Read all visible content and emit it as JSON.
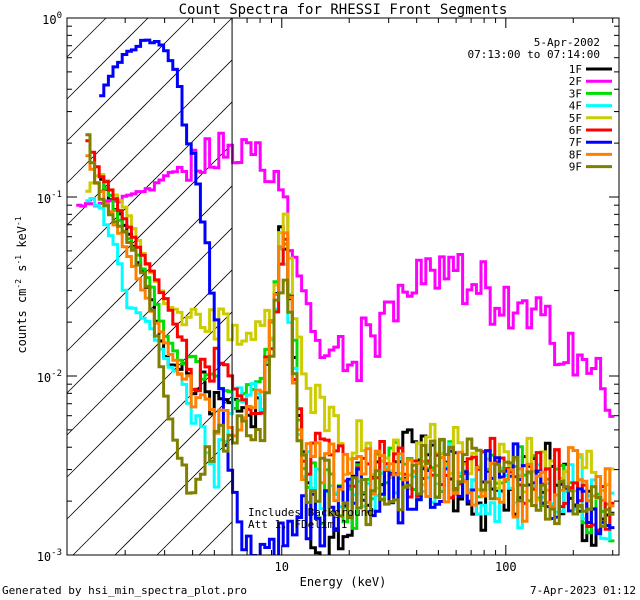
{
  "chart_data": {
    "type": "line",
    "title": "Count Spectra for RHESSI Front Segments",
    "xlabel": "Energy (keV)",
    "ylabel_parts": {
      "a": "counts cm",
      "b": "-2",
      "c": " s",
      "d": "-1",
      "e": " keV",
      "f": "-1"
    },
    "xscale": "log",
    "yscale": "log",
    "xlim": [
      1.1,
      320
    ],
    "ylim": [
      0.001,
      1.0
    ],
    "x_ticks": [
      {
        "v": 10,
        "label": "10"
      },
      {
        "v": 100,
        "label": "100"
      }
    ],
    "y_ticks": [
      {
        "v": 1.0,
        "base": "10",
        "exp": "0"
      },
      {
        "v": 0.1,
        "base": "10",
        "exp": "-1"
      },
      {
        "v": 0.01,
        "base": "10",
        "exp": "-2"
      },
      {
        "v": 0.001,
        "base": "10",
        "exp": "-3"
      }
    ],
    "hatch_region": [
      1.1,
      6.0
    ],
    "annotation": {
      "line1": "Includes Background",
      "line2": "Att 1, FDelim 1"
    },
    "legend": {
      "date": "5-Apr-2002",
      "time": "07:13:00 to 07:14:00",
      "position": "top-right"
    },
    "series": [
      {
        "name": "1F",
        "color": "#000000",
        "points": [
          [
            1.5,
            0.13
          ],
          [
            2.0,
            0.065
          ],
          [
            2.5,
            0.03
          ],
          [
            3.0,
            0.012
          ],
          [
            3.5,
            0.011
          ],
          [
            4.5,
            0.008
          ],
          [
            6,
            0.006
          ],
          [
            8,
            0.006
          ],
          [
            10,
            0.08
          ],
          [
            12,
            0.004
          ],
          [
            14,
            0.0008
          ],
          [
            20,
            0.002
          ],
          [
            30,
            0.004
          ],
          [
            50,
            0.003
          ],
          [
            70,
            0.002
          ],
          [
            100,
            0.002
          ],
          [
            150,
            0.003
          ],
          [
            200,
            0.002
          ],
          [
            300,
            0.0012
          ]
        ]
      },
      {
        "name": "2F",
        "color": "#ff00ff",
        "points": [
          [
            1.2,
            0.09
          ],
          [
            1.5,
            0.09
          ],
          [
            2.0,
            0.1
          ],
          [
            2.5,
            0.11
          ],
          [
            3.0,
            0.13
          ],
          [
            3.5,
            0.15
          ],
          [
            4.0,
            0.16
          ],
          [
            5.0,
            0.18
          ],
          [
            6.0,
            0.19
          ],
          [
            7.0,
            0.19
          ],
          [
            8.0,
            0.17
          ],
          [
            9.0,
            0.13
          ],
          [
            10,
            0.095
          ],
          [
            11,
            0.05
          ],
          [
            12,
            0.025
          ],
          [
            14,
            0.014
          ],
          [
            17,
            0.012
          ],
          [
            20,
            0.013
          ],
          [
            25,
            0.016
          ],
          [
            30,
            0.02
          ],
          [
            40,
            0.03
          ],
          [
            50,
            0.038
          ],
          [
            60,
            0.034
          ],
          [
            70,
            0.028
          ],
          [
            80,
            0.03
          ],
          [
            90,
            0.026
          ],
          [
            100,
            0.022
          ],
          [
            120,
            0.02
          ],
          [
            150,
            0.018
          ],
          [
            200,
            0.015
          ],
          [
            250,
            0.009
          ],
          [
            300,
            0.007
          ]
        ]
      },
      {
        "name": "3F",
        "color": "#00dd00",
        "points": [
          [
            1.5,
            0.14
          ],
          [
            2.0,
            0.06
          ],
          [
            2.5,
            0.035
          ],
          [
            3.0,
            0.016
          ],
          [
            3.5,
            0.012
          ],
          [
            4.5,
            0.009
          ],
          [
            6,
            0.008
          ],
          [
            8,
            0.01
          ],
          [
            10,
            0.07
          ],
          [
            12,
            0.004
          ],
          [
            14,
            0.002
          ],
          [
            20,
            0.002
          ],
          [
            30,
            0.003
          ],
          [
            50,
            0.003
          ],
          [
            100,
            0.003
          ],
          [
            200,
            0.002
          ],
          [
            300,
            0.0015
          ]
        ]
      },
      {
        "name": "4F",
        "color": "#00ffff",
        "points": [
          [
            1.3,
            0.1
          ],
          [
            1.5,
            0.09
          ],
          [
            1.8,
            0.05
          ],
          [
            2.0,
            0.025
          ],
          [
            2.5,
            0.02
          ],
          [
            3.0,
            0.012
          ],
          [
            3.5,
            0.01
          ],
          [
            4.0,
            0.006
          ],
          [
            4.5,
            0.004
          ],
          [
            5.0,
            0.003
          ],
          [
            6,
            0.007
          ],
          [
            8,
            0.008
          ],
          [
            10,
            0.06
          ],
          [
            12,
            0.003
          ],
          [
            20,
            0.002
          ],
          [
            50,
            0.003
          ],
          [
            100,
            0.002
          ],
          [
            200,
            0.0025
          ],
          [
            300,
            0.0015
          ]
        ]
      },
      {
        "name": "5F",
        "color": "#cccc00",
        "points": [
          [
            1.3,
            0.1
          ],
          [
            1.5,
            0.14
          ],
          [
            2.0,
            0.08
          ],
          [
            2.5,
            0.04
          ],
          [
            3.0,
            0.025
          ],
          [
            3.5,
            0.022
          ],
          [
            4.5,
            0.02
          ],
          [
            5.5,
            0.02
          ],
          [
            7,
            0.015
          ],
          [
            9,
            0.02
          ],
          [
            10,
            0.08
          ],
          [
            11,
            0.025
          ],
          [
            12,
            0.01
          ],
          [
            15,
            0.005
          ],
          [
            20,
            0.004
          ],
          [
            30,
            0.003
          ],
          [
            50,
            0.004
          ],
          [
            100,
            0.003
          ],
          [
            200,
            0.003
          ],
          [
            300,
            0.002
          ]
        ]
      },
      {
        "name": "6F",
        "color": "#ff0000",
        "points": [
          [
            1.3,
            0.22
          ],
          [
            1.5,
            0.14
          ],
          [
            2.0,
            0.07
          ],
          [
            2.5,
            0.04
          ],
          [
            3.0,
            0.026
          ],
          [
            3.5,
            0.015
          ],
          [
            4.0,
            0.01
          ],
          [
            5.0,
            0.012
          ],
          [
            6,
            0.008
          ],
          [
            8,
            0.007
          ],
          [
            10,
            0.06
          ],
          [
            12,
            0.004
          ],
          [
            20,
            0.003
          ],
          [
            50,
            0.003
          ],
          [
            100,
            0.003
          ],
          [
            200,
            0.0025
          ],
          [
            300,
            0.0015
          ]
        ]
      },
      {
        "name": "7F",
        "color": "#0000ff",
        "points": [
          [
            1.5,
            0.35
          ],
          [
            1.7,
            0.5
          ],
          [
            2.0,
            0.65
          ],
          [
            2.3,
            0.72
          ],
          [
            2.6,
            0.75
          ],
          [
            3.0,
            0.66
          ],
          [
            3.3,
            0.5
          ],
          [
            3.6,
            0.3
          ],
          [
            4.0,
            0.13
          ],
          [
            4.5,
            0.06
          ],
          [
            5.0,
            0.02
          ],
          [
            5.3,
            0.008
          ],
          [
            5.5,
            0.004
          ],
          [
            6.0,
            0.002
          ],
          [
            7.0,
            0.001
          ],
          [
            20,
            0.002
          ],
          [
            50,
            0.0025
          ],
          [
            100,
            0.003
          ],
          [
            200,
            0.002
          ],
          [
            300,
            0.0012
          ]
        ]
      },
      {
        "name": "8F",
        "color": "#ff8000",
        "points": [
          [
            1.3,
            0.19
          ],
          [
            1.5,
            0.11
          ],
          [
            2.0,
            0.05
          ],
          [
            2.5,
            0.025
          ],
          [
            3.0,
            0.015
          ],
          [
            3.5,
            0.01
          ],
          [
            4.0,
            0.008
          ],
          [
            5,
            0.006
          ],
          [
            6,
            0.005
          ],
          [
            8,
            0.007
          ],
          [
            10,
            0.07
          ],
          [
            12,
            0.003
          ],
          [
            20,
            0.003
          ],
          [
            50,
            0.003
          ],
          [
            100,
            0.002
          ],
          [
            200,
            0.003
          ],
          [
            300,
            0.002
          ]
        ]
      },
      {
        "name": "9F",
        "color": "#7f7f00",
        "points": [
          [
            1.3,
            0.25
          ],
          [
            1.5,
            0.1
          ],
          [
            2.0,
            0.06
          ],
          [
            2.5,
            0.03
          ],
          [
            3.0,
            0.007
          ],
          [
            3.5,
            0.003
          ],
          [
            4.0,
            0.0025
          ],
          [
            5,
            0.004
          ],
          [
            6,
            0.005
          ],
          [
            8,
            0.005
          ],
          [
            10,
            0.05
          ],
          [
            12,
            0.003
          ],
          [
            20,
            0.002
          ],
          [
            50,
            0.003
          ],
          [
            100,
            0.003
          ],
          [
            200,
            0.002
          ],
          [
            300,
            0.0015
          ]
        ]
      }
    ]
  },
  "footer": {
    "left": "Generated by hsi_min_spectra_plot.pro",
    "right": "7-Apr-2023 01:12"
  }
}
